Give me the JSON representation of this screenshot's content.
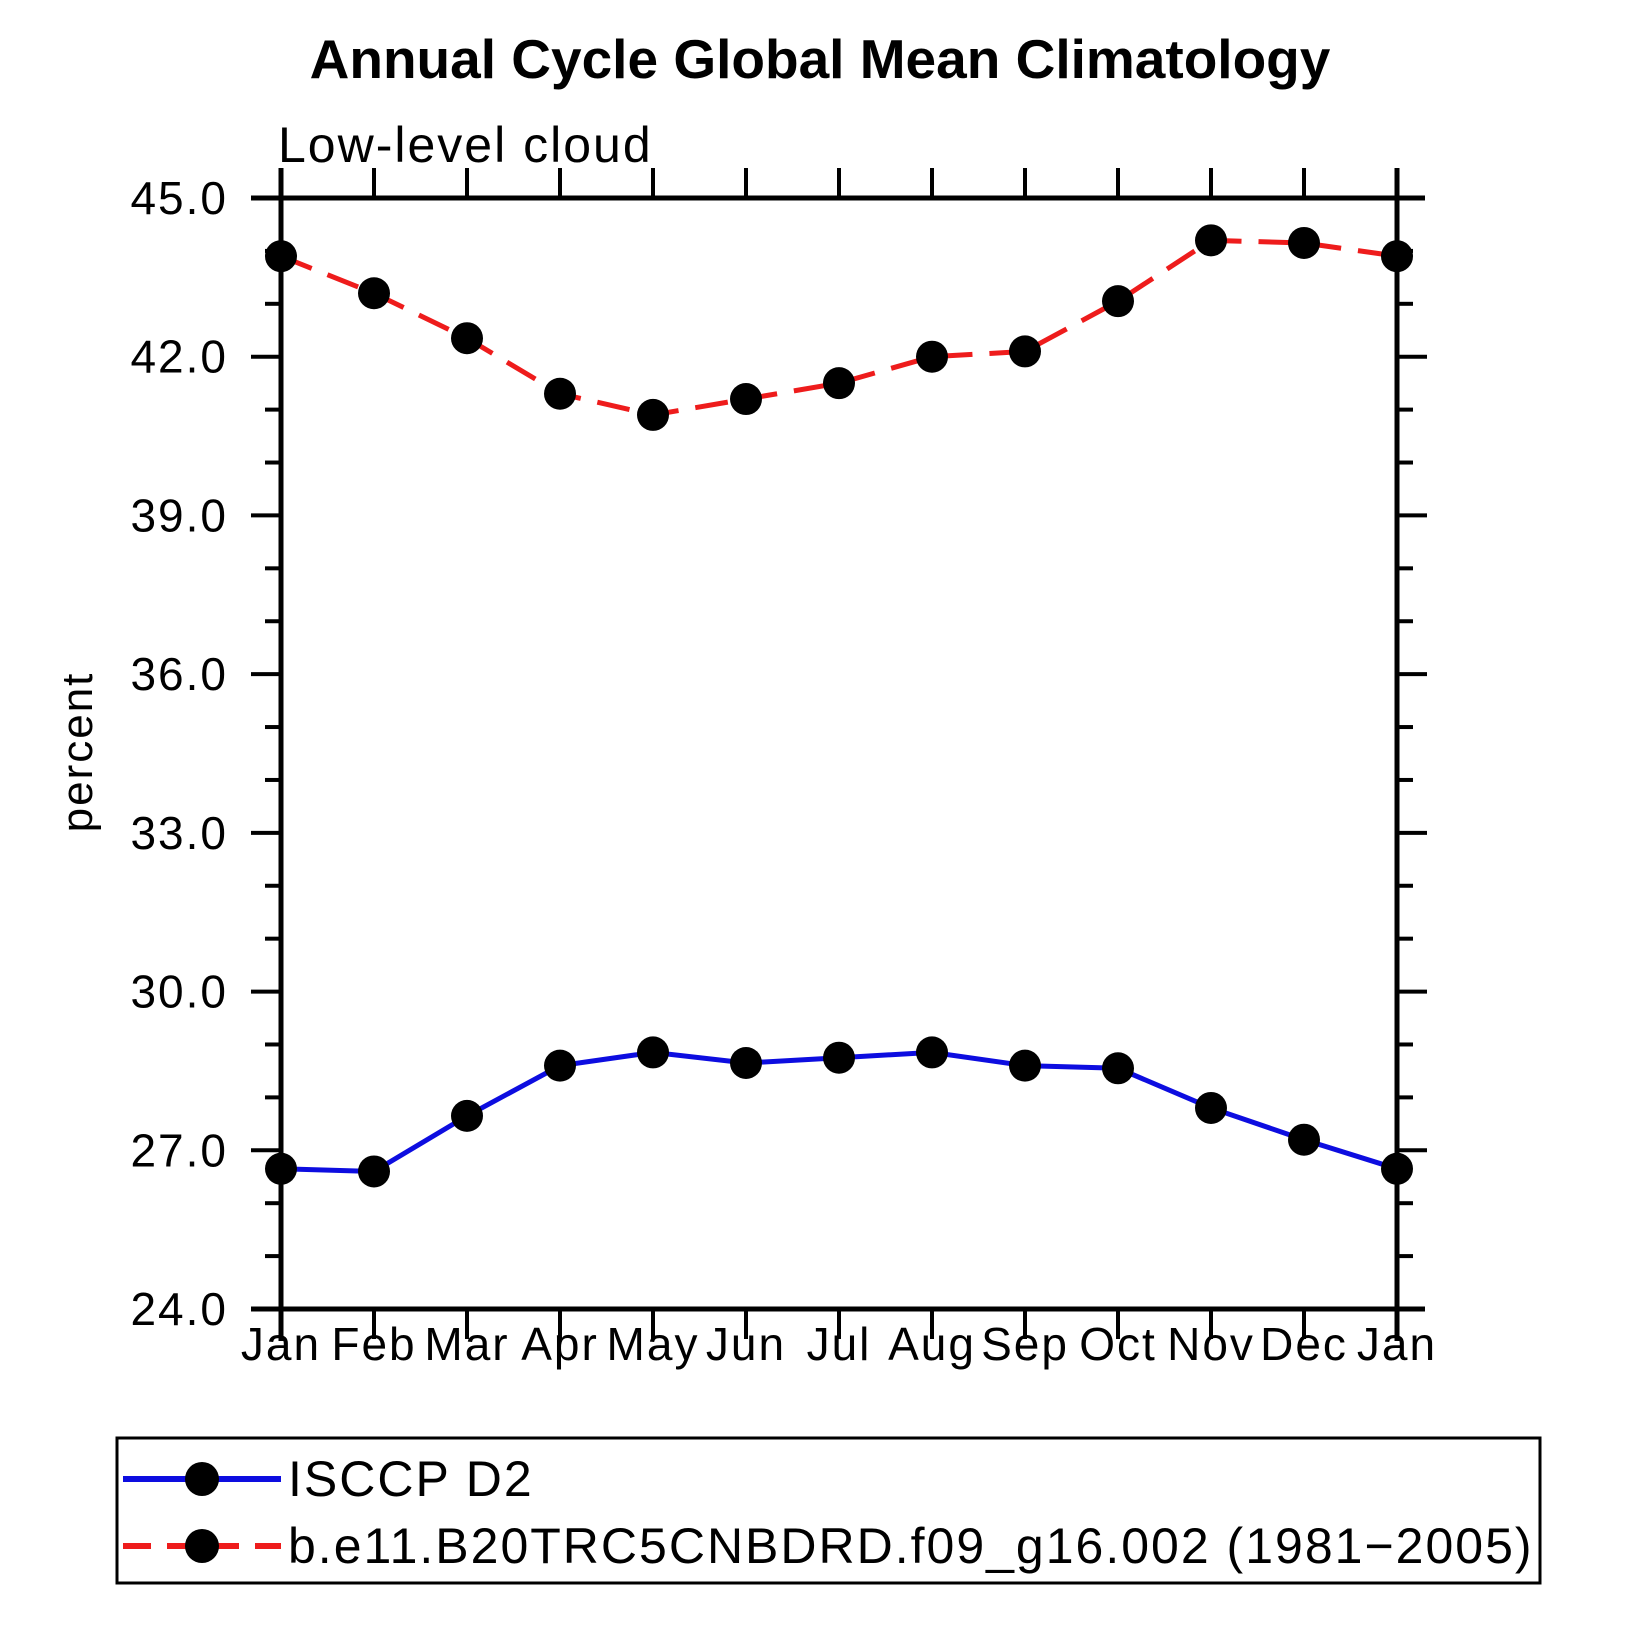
{
  "page": {
    "background": "#ffffff",
    "axis_color": "#000000",
    "text_color": "#000000"
  },
  "header": {
    "title": "Annual Cycle Global Mean Climatology",
    "subtitle": "Low-level cloud"
  },
  "chart_data": {
    "type": "line",
    "title": "Annual Cycle Global Mean Climatology",
    "subtitle": "Low-level cloud",
    "xlabel": "",
    "ylabel": "percent",
    "categories": [
      "Jan",
      "Feb",
      "Mar",
      "Apr",
      "May",
      "Jun",
      "Jul",
      "Aug",
      "Sep",
      "Oct",
      "Nov",
      "Dec",
      "Jan"
    ],
    "ylim": [
      24.0,
      45.0
    ],
    "ytick_major_interval": 3.0,
    "ytick_minor_interval": 1.0,
    "ytick_labels": [
      "24.0",
      "27.0",
      "30.0",
      "33.0",
      "36.0",
      "39.0",
      "42.0",
      "45.0"
    ],
    "grid": false,
    "legend_position": "bottom-left",
    "marker": "filled-circle",
    "marker_color": "#000000",
    "series": [
      {
        "name": "ISCCP D2",
        "color": "#0d0de0",
        "line_style": "solid",
        "values": [
          26.65,
          26.6,
          27.65,
          28.6,
          28.85,
          28.65,
          28.75,
          28.85,
          28.6,
          28.55,
          27.8,
          27.2,
          26.65
        ]
      },
      {
        "name": "b.e11.B20TRC5CNBDRD.f09_g16.002 (1981−2005)",
        "color": "#ee1c1c",
        "line_style": "dashed",
        "values": [
          43.9,
          43.2,
          42.35,
          41.3,
          40.9,
          41.2,
          41.5,
          42.0,
          42.1,
          43.05,
          44.2,
          44.15,
          43.9
        ]
      }
    ]
  }
}
